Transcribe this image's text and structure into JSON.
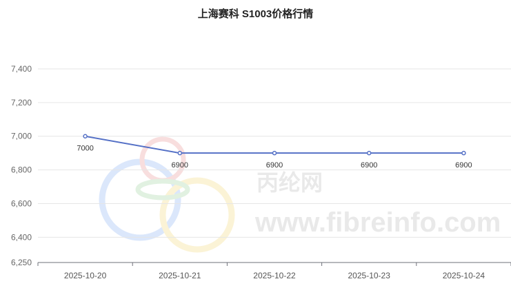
{
  "chart_data": {
    "type": "line",
    "title": "上海赛科 S1003价格行情",
    "categories": [
      "2025-10-20",
      "2025-10-21",
      "2025-10-22",
      "2025-10-23",
      "2025-10-24"
    ],
    "series": [
      {
        "values": [
          7000,
          6900,
          6900,
          6900,
          6900
        ]
      }
    ],
    "data_labels": [
      "7000",
      "6900",
      "6900",
      "6900",
      "6900"
    ],
    "y_ticks": [
      "6,250",
      "6,400",
      "6,600",
      "6,800",
      "7,000",
      "7,200",
      "7,400"
    ],
    "ylim": [
      6250,
      7450
    ],
    "grid": true,
    "line_color": "#5470c6"
  },
  "watermark": {
    "brand_cn": "丙纶网",
    "site": "www.fibreinfo.com"
  }
}
